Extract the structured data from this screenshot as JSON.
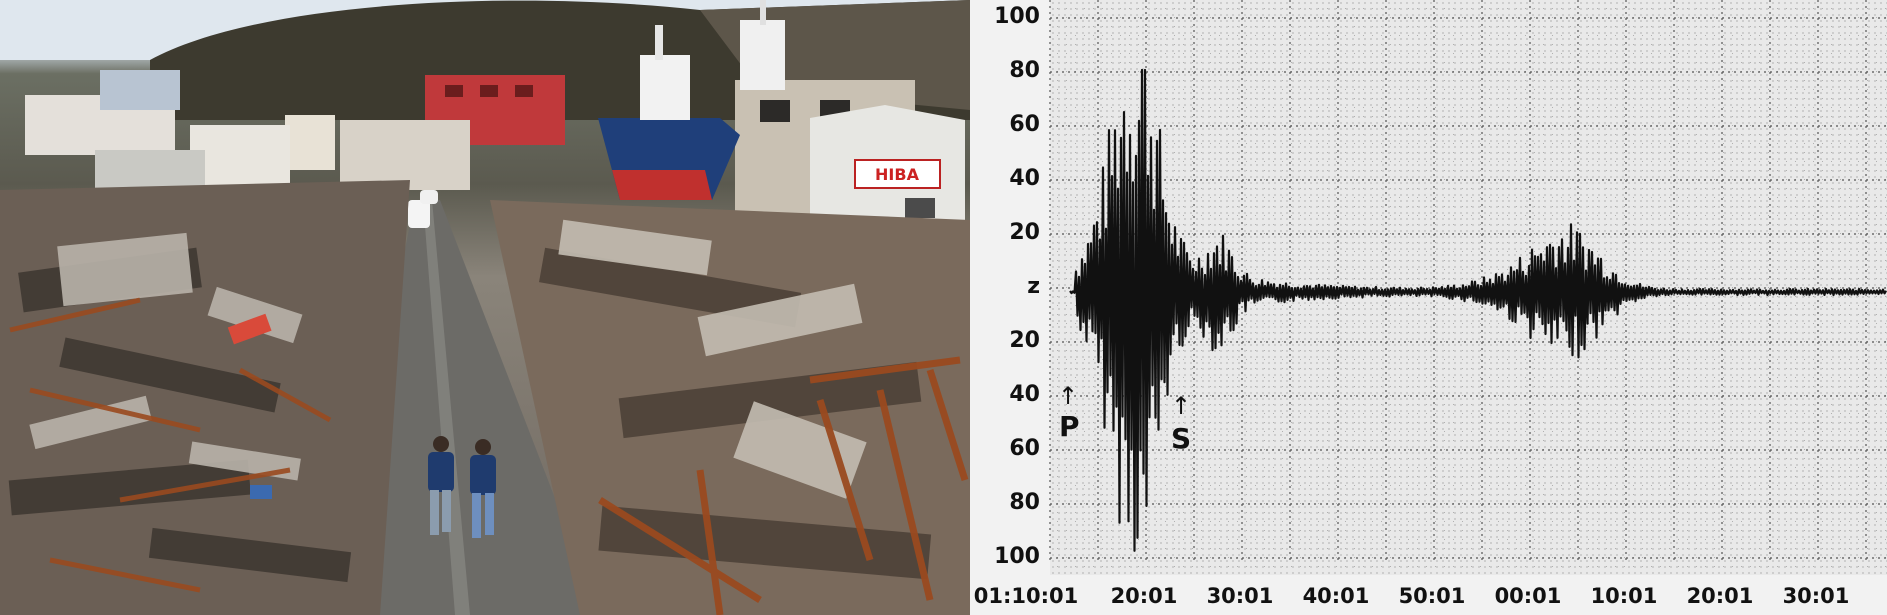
{
  "photo": {
    "scene": "disaster-street-photo",
    "signboard_text": "HIBA"
  },
  "seismogram": {
    "y_tick_labels": [
      "100",
      "80",
      "60",
      "40",
      "20",
      "z",
      "20",
      "40",
      "60",
      "80",
      "100"
    ],
    "x_tick_labels": [
      "01:10:01",
      "20:01",
      "30:01",
      "40:01",
      "50:01",
      "00:01",
      "10:01",
      "20:01",
      "30:01"
    ],
    "phase_labels": {
      "p": "P",
      "s": "S"
    },
    "arrow_glyph": "↑"
  },
  "colors": {
    "trace": "#111111",
    "grid": "#555555",
    "sky": "#dfe7ee",
    "ship_hull_blue": "#1f3f7a",
    "ship_hull_red": "#c0302e",
    "rust": "#9a4a1f"
  }
}
